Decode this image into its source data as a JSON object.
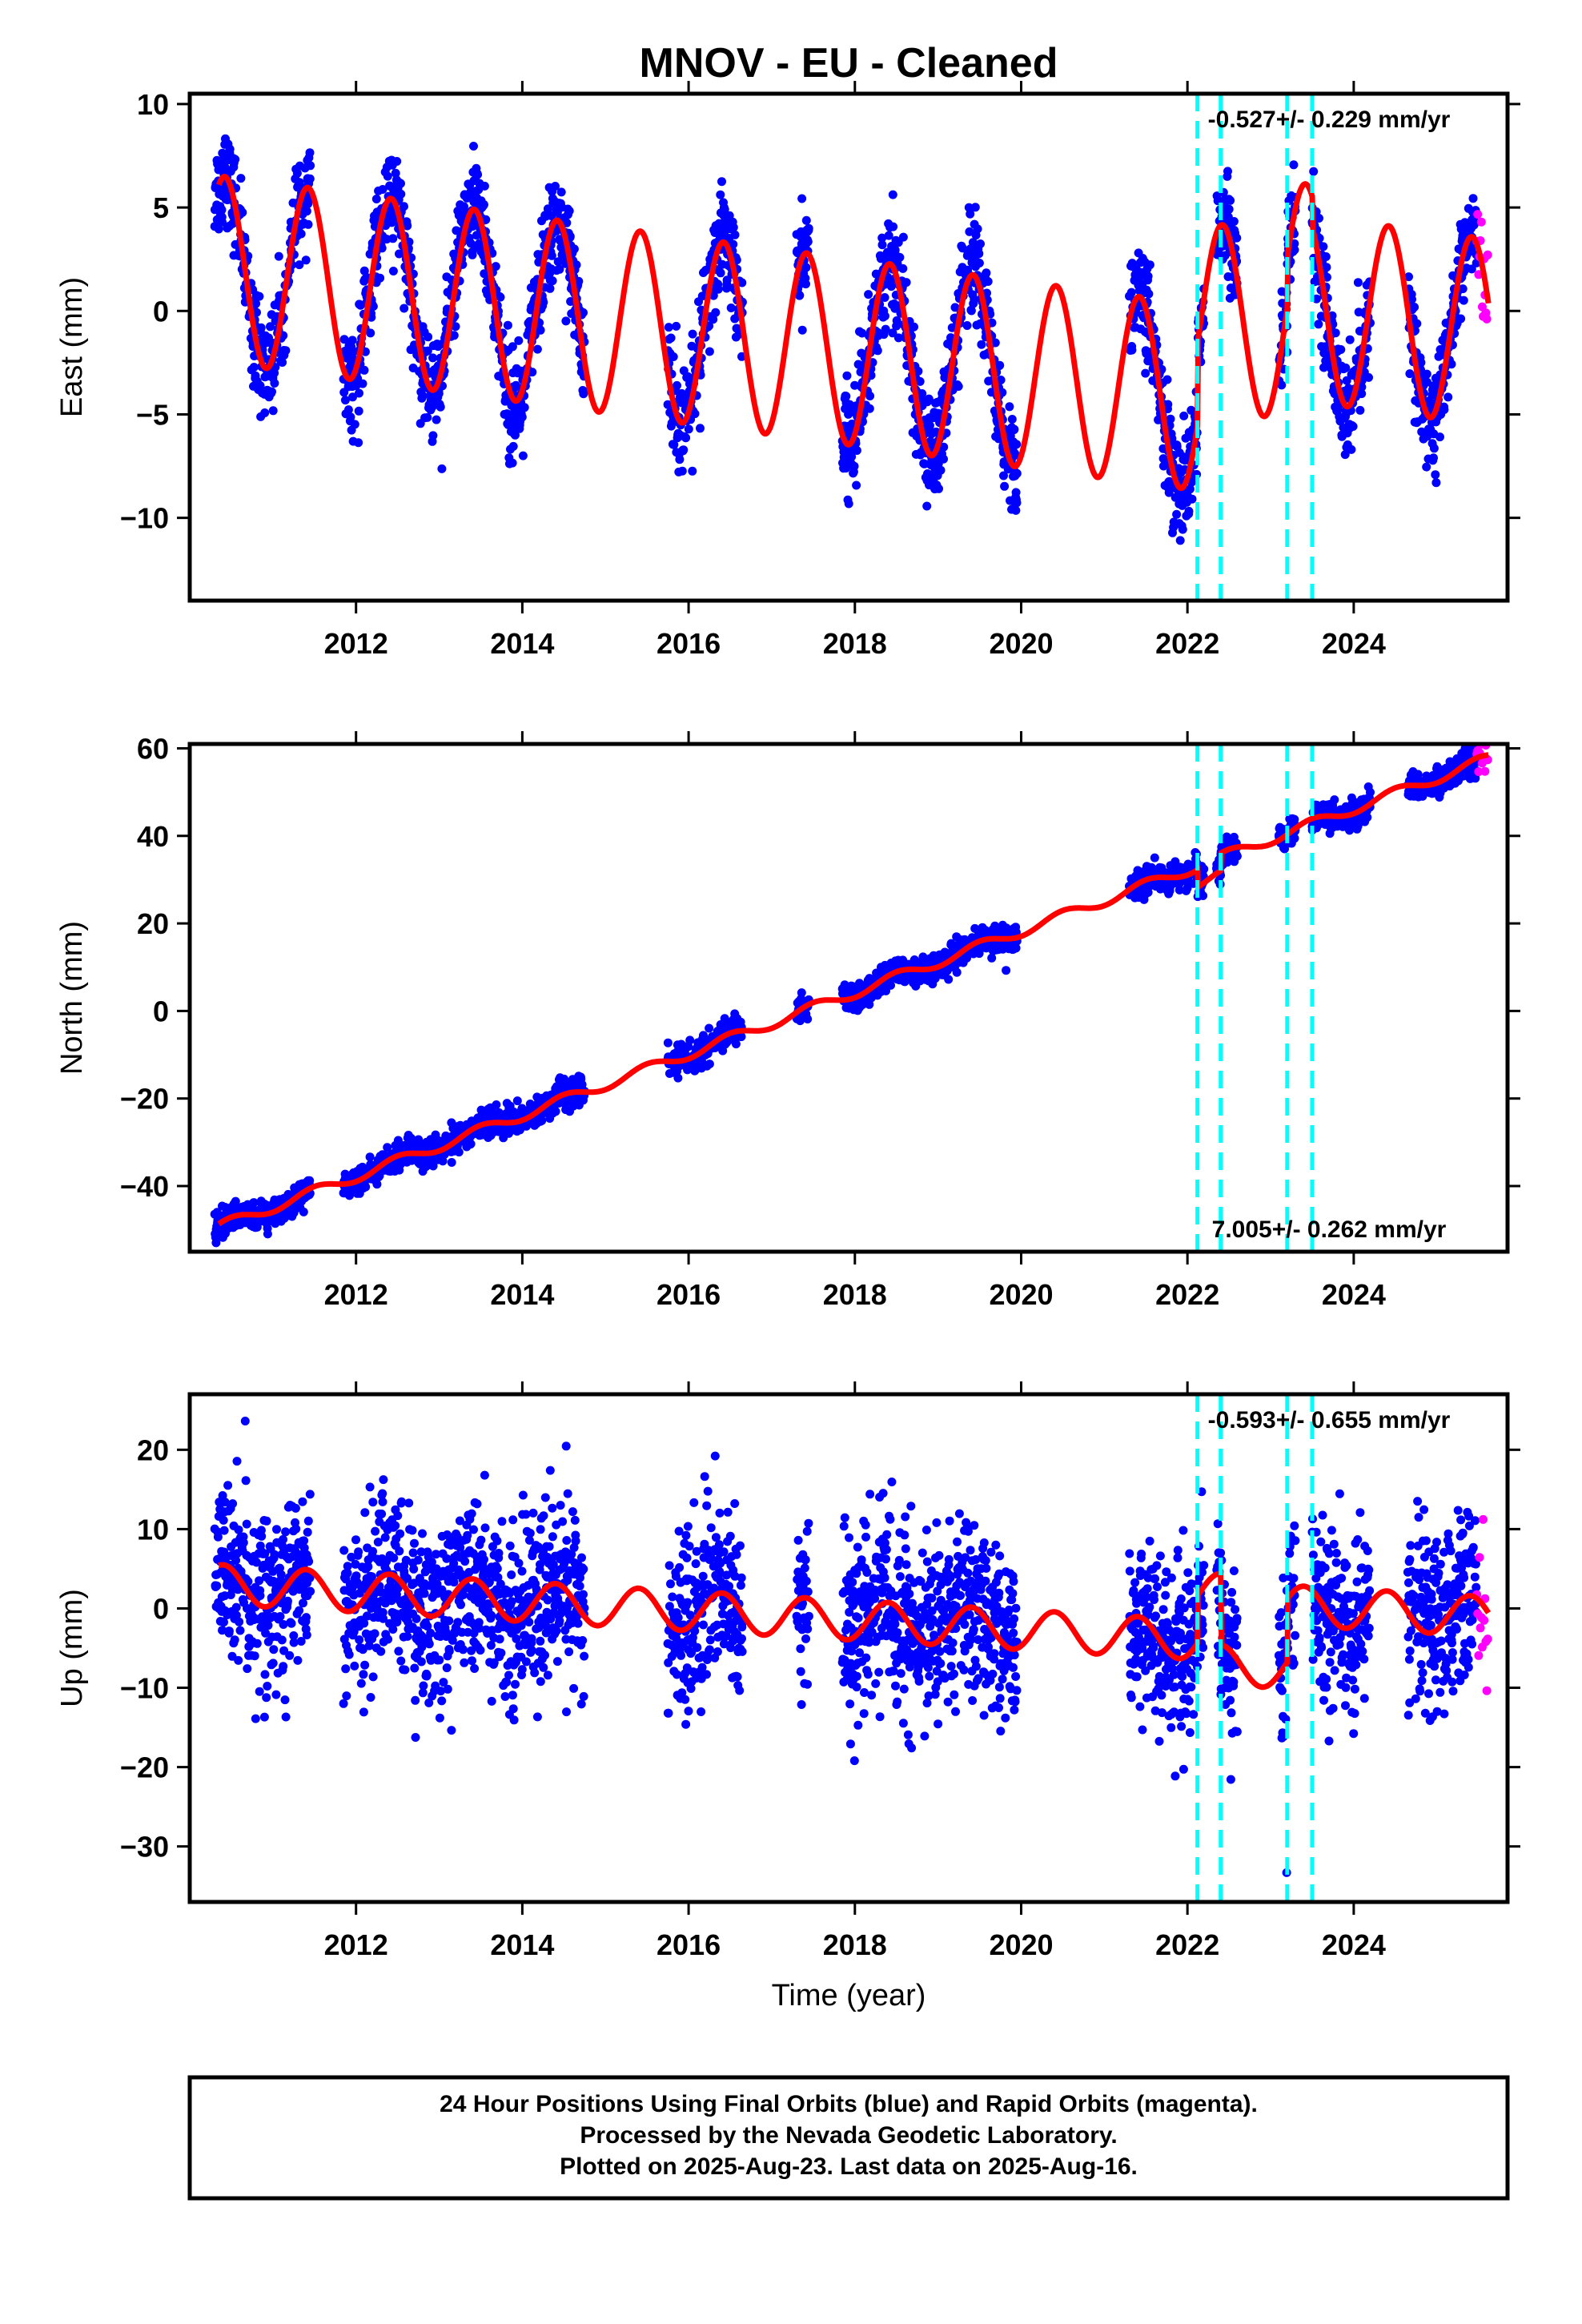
{
  "title": "MNOV  - EU - Cleaned",
  "xlabel": "Time (year)",
  "x_ticks": [
    "2012",
    "2014",
    "2016",
    "2018",
    "2020",
    "2022",
    "2024"
  ],
  "colors": {
    "final_orbits": "#0000ff",
    "rapid_orbits": "#ff00ff",
    "model": "#ff0000",
    "events": "#00ffff"
  },
  "footer": {
    "line1": "24 Hour Positions Using Final Orbits (blue) and Rapid Orbits (magenta).",
    "line2": "Processed by the Nevada Geodetic Laboratory.",
    "line3": "Plotted on 2025-Aug-23. Last data on 2025-Aug-16."
  },
  "chart_data": [
    {
      "type": "scatter",
      "ylabel": "East (mm)",
      "rate_text": "-0.527+/- 0.229 mm/yr",
      "rate_position": "top-right",
      "xlim": [
        2010.0,
        2025.85
      ],
      "ylim": [
        -14,
        10.5
      ],
      "y_ticks": [
        "10",
        "5",
        "0",
        "−5",
        "−10"
      ],
      "y_tick_values": [
        10,
        5,
        0,
        -5,
        -10
      ],
      "grid": false,
      "event_lines": [
        2022.12,
        2022.4,
        2023.2,
        2023.5
      ],
      "data_segments": [
        [
          2010.3,
          2011.45
        ],
        [
          2011.85,
          2014.75
        ],
        [
          2015.75,
          2016.65
        ],
        [
          2017.3,
          2017.45
        ],
        [
          2017.85,
          2019.95
        ],
        [
          2021.3,
          2022.2
        ],
        [
          2022.35,
          2022.6
        ],
        [
          2023.1,
          2023.3
        ],
        [
          2023.5,
          2024.2
        ],
        [
          2024.65,
          2025.62
        ]
      ],
      "rapid_segment": [
        2025.48,
        2025.62
      ],
      "series": [
        {
          "name": "Final Orbits (blue)",
          "kind": "daily positions",
          "amplitude_mm": 4.5,
          "scatter_mm": 1.2
        },
        {
          "name": "Rapid Orbits (magenta)",
          "kind": "daily positions"
        },
        {
          "kind": "model fit",
          "trend_mm_per_yr": -0.527,
          "offset_mm": 2.0,
          "x_ref": 2010.4,
          "annual_amplitude_mm": 4.5,
          "annual_phase_peak": 0.42,
          "steps": [
            {
              "x": 2022.12,
              "dy": 4.0
            },
            {
              "x": 2023.2,
              "dy": 2.5
            },
            {
              "x": 2023.5,
              "dy": -1.5
            }
          ]
        }
      ]
    },
    {
      "type": "scatter",
      "ylabel": "North (mm)",
      "rate_text": "7.005+/- 0.262 mm/yr",
      "rate_position": "bottom-right",
      "xlim": [
        2010.0,
        2025.85
      ],
      "ylim": [
        -55,
        61
      ],
      "y_ticks": [
        "60",
        "40",
        "20",
        "0",
        "−20",
        "−40"
      ],
      "y_tick_values": [
        60,
        40,
        20,
        0,
        -20,
        -40
      ],
      "grid": false,
      "event_lines": [
        2022.12,
        2022.4,
        2023.2,
        2023.5
      ],
      "data_segments": [
        [
          2010.3,
          2011.45
        ],
        [
          2011.85,
          2014.75
        ],
        [
          2015.75,
          2016.65
        ],
        [
          2017.3,
          2017.45
        ],
        [
          2017.85,
          2019.95
        ],
        [
          2021.3,
          2022.2
        ],
        [
          2022.35,
          2022.6
        ],
        [
          2023.1,
          2023.3
        ],
        [
          2023.5,
          2024.2
        ],
        [
          2024.65,
          2025.62
        ]
      ],
      "rapid_segment": [
        2025.48,
        2025.62
      ],
      "series": [
        {
          "name": "Final Orbits (blue)",
          "kind": "daily positions",
          "amplitude_mm": 1.2,
          "scatter_mm": 1.5
        },
        {
          "name": "Rapid Orbits (magenta)",
          "kind": "daily positions"
        },
        {
          "kind": "model fit",
          "trend_mm_per_yr": 7.005,
          "offset_mm": -49.0,
          "x_ref": 2010.4,
          "annual_amplitude_mm": 1.2,
          "annual_phase_peak": 0.5,
          "steps": [
            {
              "x": 2022.12,
              "dy": -4.0
            },
            {
              "x": 2022.4,
              "dy": 4.0
            }
          ]
        }
      ]
    },
    {
      "type": "scatter",
      "ylabel": "Up (mm)",
      "rate_text": "-0.593+/- 0.655 mm/yr",
      "rate_position": "top-right",
      "xlim": [
        2010.0,
        2025.85
      ],
      "ylim": [
        -37,
        27
      ],
      "y_ticks": [
        "20",
        "10",
        "0",
        "−10",
        "−20",
        "−30"
      ],
      "y_tick_values": [
        20,
        10,
        0,
        -10,
        -20,
        -30
      ],
      "grid": false,
      "event_lines": [
        2022.12,
        2022.4,
        2023.2,
        2023.5
      ],
      "data_segments": [
        [
          2010.3,
          2011.45
        ],
        [
          2011.85,
          2014.75
        ],
        [
          2015.75,
          2016.65
        ],
        [
          2017.3,
          2017.45
        ],
        [
          2017.85,
          2019.95
        ],
        [
          2021.3,
          2022.2
        ],
        [
          2022.35,
          2022.6
        ],
        [
          2023.1,
          2023.3
        ],
        [
          2023.5,
          2024.2
        ],
        [
          2024.65,
          2025.62
        ]
      ],
      "rapid_segment": [
        2025.48,
        2025.62
      ],
      "series": [
        {
          "name": "Final Orbits (blue)",
          "kind": "daily positions",
          "amplitude_mm": 2.5,
          "scatter_mm": 5.5
        },
        {
          "name": "Rapid Orbits (magenta)",
          "kind": "daily positions"
        },
        {
          "kind": "model fit",
          "trend_mm_per_yr": -0.593,
          "offset_mm": 3.0,
          "x_ref": 2010.4,
          "annual_amplitude_mm": 2.5,
          "annual_phase_peak": 0.4,
          "steps": [
            {
              "x": 2022.12,
              "dy": 6.0
            },
            {
              "x": 2022.4,
              "dy": -9.0
            },
            {
              "x": 2023.2,
              "dy": 8.0
            }
          ]
        }
      ]
    }
  ]
}
